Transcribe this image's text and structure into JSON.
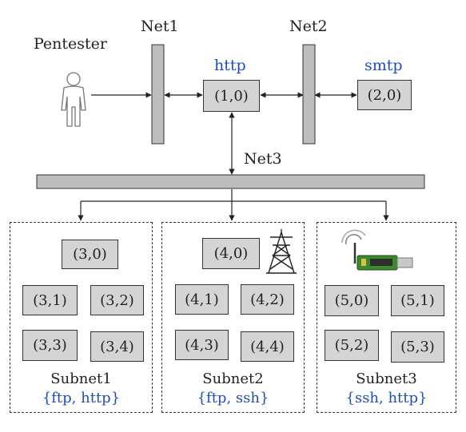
{
  "actor": {
    "label": "Pentester",
    "icon": "person-icon"
  },
  "networks": {
    "net1": "Net1",
    "net2": "Net2",
    "net3": "Net3"
  },
  "hosts": {
    "h10": {
      "id": "(1,0)",
      "service": "http"
    },
    "h20": {
      "id": "(2,0)",
      "service": "smtp"
    }
  },
  "subnets": [
    {
      "name": "Subnet1",
      "services": "{ftp, http}",
      "hosts": [
        "(3,0)",
        "(3,1)",
        "(3,2)",
        "(3,3)",
        "(3,4)"
      ]
    },
    {
      "name": "Subnet2",
      "services": "{ftp, ssh}",
      "icon": "power-tower-icon",
      "hosts": [
        "(4,0)",
        "(4,1)",
        "(4,2)",
        "(4,3)",
        "(4,4)"
      ]
    },
    {
      "name": "Subnet3",
      "services": "{ssh, http}",
      "icon": "wireless-usb-dongle-icon",
      "hosts": [
        "(5,0)",
        "(5,1)",
        "(5,2)",
        "(5,3)"
      ]
    }
  ],
  "colors": {
    "service_text": "#1f4fb4",
    "node_fill": "#d4d4d4",
    "bar_fill": "#bdbdbd",
    "dongle_green": "#3c8a2e"
  }
}
